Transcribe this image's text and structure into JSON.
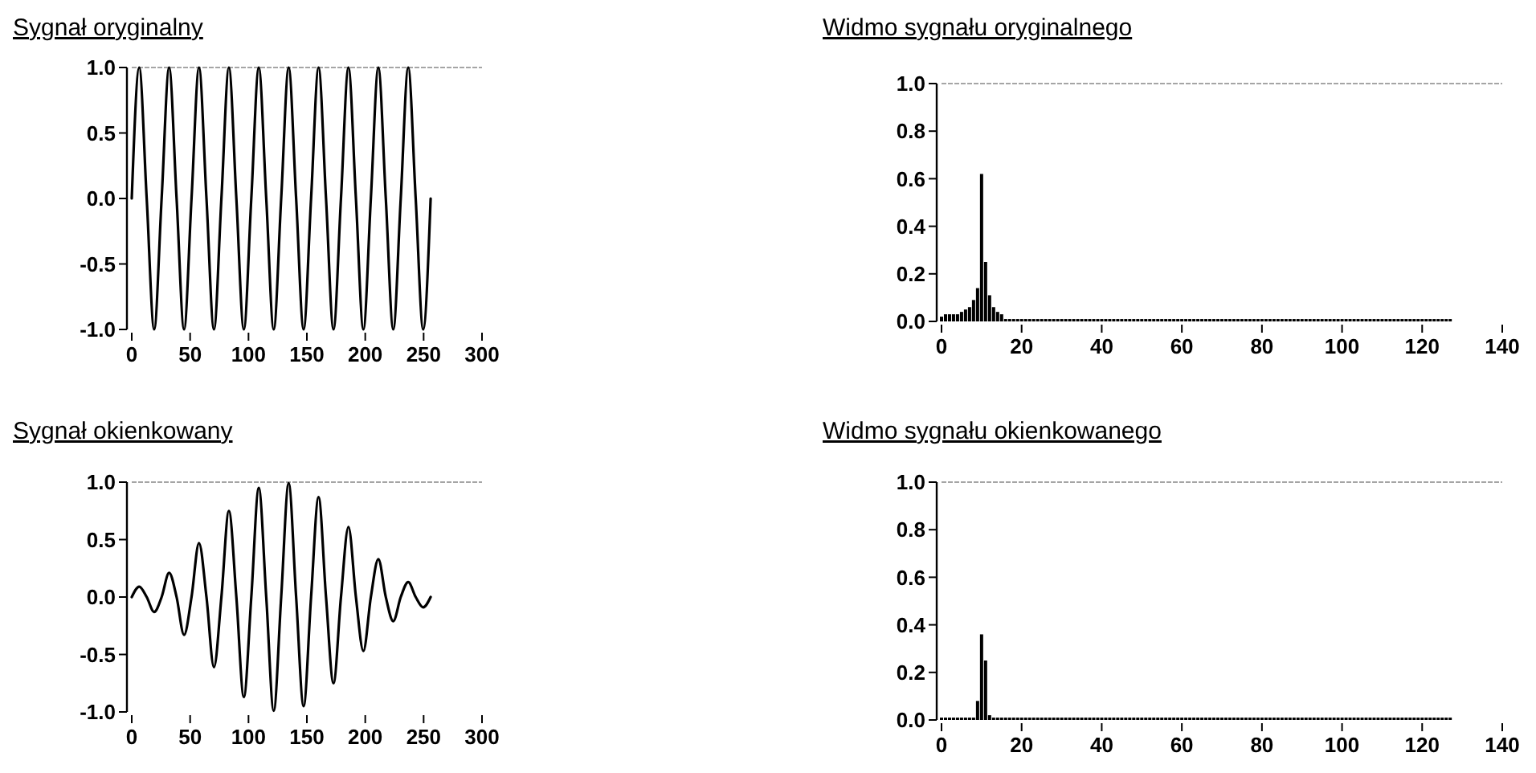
{
  "chart_data": [
    {
      "type": "line",
      "title": "Sygnał oryginalny",
      "x": [
        0,
        6.4,
        12.8,
        19.2,
        25.6,
        32,
        38.4,
        44.8,
        51.2,
        57.6,
        64,
        70.4,
        76.8,
        83.2,
        89.6,
        96,
        102.4,
        108.8,
        115.2,
        121.6,
        128,
        134.4,
        140.8,
        147.2,
        153.6,
        160,
        166.4,
        172.8,
        179.2,
        185.6,
        192,
        198.4,
        204.8,
        211.2,
        217.6,
        224,
        230.4,
        236.8,
        243.2,
        249.6,
        256
      ],
      "series": [
        {
          "color": "#000000",
          "values": [
            0,
            1,
            0,
            -1,
            0,
            1,
            0,
            -1,
            0,
            1,
            0,
            -1,
            0,
            1,
            0,
            -1,
            0,
            1,
            0,
            -1,
            0,
            1,
            0,
            -1,
            0,
            1,
            0,
            -1,
            0,
            1,
            0,
            -1,
            0,
            1,
            0,
            -1,
            0,
            1,
            0,
            -1,
            0
          ]
        }
      ],
      "xlim": [
        0,
        300
      ],
      "xticks": [
        0,
        50,
        100,
        150,
        200,
        250,
        300
      ],
      "ylim": [
        -1,
        1
      ],
      "yticks": [
        {
          "value": -1,
          "label": "-1.0"
        },
        {
          "value": -0.5,
          "label": "-0.5"
        },
        {
          "value": 0,
          "label": "0.0"
        },
        {
          "value": 0.5,
          "label": "0.5"
        },
        {
          "value": 1,
          "label": "1.0"
        }
      ]
    },
    {
      "type": "bar",
      "title": "Widmo sygnału oryginalnego",
      "x": [
        0,
        1,
        2,
        3,
        4,
        5,
        6,
        7,
        8,
        9,
        10,
        11,
        12,
        13,
        14,
        15,
        16,
        17,
        18,
        19,
        20,
        21,
        22,
        23,
        24,
        25,
        26,
        27,
        28,
        29,
        30,
        31,
        32,
        33,
        34,
        35,
        36,
        37,
        38,
        39,
        40,
        41,
        42,
        43,
        44,
        45,
        46,
        47,
        48,
        49,
        50,
        51,
        52,
        53,
        54,
        55,
        56,
        57,
        58,
        59,
        60,
        61,
        62,
        63,
        64,
        65,
        66,
        67,
        68,
        69,
        70,
        71,
        72,
        73,
        74,
        75,
        76,
        77,
        78,
        79,
        80,
        81,
        82,
        83,
        84,
        85,
        86,
        87,
        88,
        89,
        90,
        91,
        92,
        93,
        94,
        95,
        96,
        97,
        98,
        99,
        100,
        101,
        102,
        103,
        104,
        105,
        106,
        107,
        108,
        109,
        110,
        111,
        112,
        113,
        114,
        115,
        116,
        117,
        118,
        119,
        120,
        121,
        122,
        123,
        124,
        125,
        126,
        127
      ],
      "series": [
        {
          "color": "#000000",
          "values": [
            0.02,
            0.03,
            0.03,
            0.03,
            0.03,
            0.04,
            0.05,
            0.06,
            0.09,
            0.14,
            0.62,
            0.25,
            0.11,
            0.06,
            0.04,
            0.03,
            0.01,
            0.01,
            0.01,
            0.01,
            0.01,
            0.01,
            0.01,
            0.01,
            0.01,
            0.01,
            0.01,
            0.01,
            0.01,
            0.01,
            0.01,
            0.01,
            0.01,
            0.01,
            0.01,
            0.01,
            0.01,
            0.01,
            0.01,
            0.01,
            0.01,
            0.01,
            0.01,
            0.01,
            0.01,
            0.01,
            0.01,
            0.01,
            0.01,
            0.01,
            0.01,
            0.01,
            0.01,
            0.01,
            0.01,
            0.01,
            0.01,
            0.01,
            0.01,
            0.01,
            0.01,
            0.01,
            0.01,
            0.01,
            0.01,
            0.01,
            0.01,
            0.01,
            0.01,
            0.01,
            0.01,
            0.01,
            0.01,
            0.01,
            0.01,
            0.01,
            0.01,
            0.01,
            0.01,
            0.01,
            0.01,
            0.01,
            0.01,
            0.01,
            0.01,
            0.01,
            0.01,
            0.01,
            0.01,
            0.01,
            0.01,
            0.01,
            0.01,
            0.01,
            0.01,
            0.01,
            0.01,
            0.01,
            0.01,
            0.01,
            0.01,
            0.01,
            0.01,
            0.01,
            0.01,
            0.01,
            0.01,
            0.01,
            0.01,
            0.01,
            0.01,
            0.01,
            0.01,
            0.01,
            0.01,
            0.01,
            0.01,
            0.01,
            0.01,
            0.01,
            0.01,
            0.01,
            0.01,
            0.01,
            0.01,
            0.01,
            0.01,
            0.01
          ]
        }
      ],
      "xlim": [
        0,
        140
      ],
      "xticks": [
        0,
        20,
        40,
        60,
        80,
        100,
        120,
        140
      ],
      "ylim": [
        0,
        1
      ],
      "yticks": [
        {
          "value": 0,
          "label": "0.0"
        },
        {
          "value": 0.2,
          "label": "0.2"
        },
        {
          "value": 0.4,
          "label": "0.4"
        },
        {
          "value": 0.6,
          "label": "0.6"
        },
        {
          "value": 0.8,
          "label": "0.8"
        },
        {
          "value": 1,
          "label": "1.0"
        }
      ]
    },
    {
      "type": "line",
      "title": "Sygnał okienkowany",
      "x": [
        0,
        6.4,
        12.8,
        19.2,
        25.6,
        32,
        38.4,
        44.8,
        51.2,
        57.6,
        64,
        70.4,
        76.8,
        83.2,
        89.6,
        96,
        102.4,
        108.8,
        115.2,
        121.6,
        128,
        134.4,
        140.8,
        147.2,
        153.6,
        160,
        166.4,
        172.8,
        179.2,
        185.6,
        192,
        198.4,
        204.8,
        211.2,
        217.6,
        224,
        230.4,
        236.8,
        243.2,
        249.6,
        256
      ],
      "series": [
        {
          "color": "#000000",
          "values": [
            0,
            0.09,
            0,
            -0.13,
            0,
            0.21,
            0,
            -0.33,
            0,
            0.47,
            0,
            -0.61,
            0,
            0.75,
            0,
            -0.87,
            0,
            0.95,
            0,
            -0.99,
            0,
            0.99,
            0,
            -0.95,
            0,
            0.87,
            0,
            -0.75,
            0,
            0.61,
            0,
            -0.47,
            0,
            0.33,
            0,
            -0.21,
            0,
            0.13,
            0,
            -0.09,
            0
          ]
        }
      ],
      "xlim": [
        0,
        300
      ],
      "xticks": [
        0,
        50,
        100,
        150,
        200,
        250,
        300
      ],
      "ylim": [
        -1,
        1
      ],
      "yticks": [
        {
          "value": -1,
          "label": "-1.0"
        },
        {
          "value": -0.5,
          "label": "-0.5"
        },
        {
          "value": 0,
          "label": "0.0"
        },
        {
          "value": 0.5,
          "label": "0.5"
        },
        {
          "value": 1,
          "label": "1.0"
        }
      ]
    },
    {
      "type": "bar",
      "title": "Widmo sygnału okienkowanego",
      "x": [
        0,
        1,
        2,
        3,
        4,
        5,
        6,
        7,
        8,
        9,
        10,
        11,
        12,
        13,
        14,
        15,
        16,
        17,
        18,
        19,
        20,
        21,
        22,
        23,
        24,
        25,
        26,
        27,
        28,
        29,
        30,
        31,
        32,
        33,
        34,
        35,
        36,
        37,
        38,
        39,
        40,
        41,
        42,
        43,
        44,
        45,
        46,
        47,
        48,
        49,
        50,
        51,
        52,
        53,
        54,
        55,
        56,
        57,
        58,
        59,
        60,
        61,
        62,
        63,
        64,
        65,
        66,
        67,
        68,
        69,
        70,
        71,
        72,
        73,
        74,
        75,
        76,
        77,
        78,
        79,
        80,
        81,
        82,
        83,
        84,
        85,
        86,
        87,
        88,
        89,
        90,
        91,
        92,
        93,
        94,
        95,
        96,
        97,
        98,
        99,
        100,
        101,
        102,
        103,
        104,
        105,
        106,
        107,
        108,
        109,
        110,
        111,
        112,
        113,
        114,
        115,
        116,
        117,
        118,
        119,
        120,
        121,
        122,
        123,
        124,
        125,
        126,
        127
      ],
      "series": [
        {
          "color": "#000000",
          "values": [
            0.01,
            0.01,
            0.01,
            0.01,
            0.01,
            0.01,
            0.01,
            0.01,
            0.01,
            0.08,
            0.36,
            0.25,
            0.02,
            0.01,
            0.01,
            0.01,
            0.01,
            0.01,
            0.01,
            0.01,
            0.01,
            0.01,
            0.01,
            0.01,
            0.01,
            0.01,
            0.01,
            0.01,
            0.01,
            0.01,
            0.01,
            0.01,
            0.01,
            0.01,
            0.01,
            0.01,
            0.01,
            0.01,
            0.01,
            0.01,
            0.01,
            0.01,
            0.01,
            0.01,
            0.01,
            0.01,
            0.01,
            0.01,
            0.01,
            0.01,
            0.01,
            0.01,
            0.01,
            0.01,
            0.01,
            0.01,
            0.01,
            0.01,
            0.01,
            0.01,
            0.01,
            0.01,
            0.01,
            0.01,
            0.01,
            0.01,
            0.01,
            0.01,
            0.01,
            0.01,
            0.01,
            0.01,
            0.01,
            0.01,
            0.01,
            0.01,
            0.01,
            0.01,
            0.01,
            0.01,
            0.01,
            0.01,
            0.01,
            0.01,
            0.01,
            0.01,
            0.01,
            0.01,
            0.01,
            0.01,
            0.01,
            0.01,
            0.01,
            0.01,
            0.01,
            0.01,
            0.01,
            0.01,
            0.01,
            0.01,
            0.01,
            0.01,
            0.01,
            0.01,
            0.01,
            0.01,
            0.01,
            0.01,
            0.01,
            0.01,
            0.01,
            0.01,
            0.01,
            0.01,
            0.01,
            0.01,
            0.01,
            0.01,
            0.01,
            0.01,
            0.01,
            0.01,
            0.01,
            0.01,
            0.01,
            0.01,
            0.01,
            0.01
          ]
        }
      ],
      "xlim": [
        0,
        140
      ],
      "xticks": [
        0,
        20,
        40,
        60,
        80,
        100,
        120,
        140
      ],
      "ylim": [
        0,
        1
      ],
      "yticks": [
        {
          "value": 0,
          "label": "0.0"
        },
        {
          "value": 0.2,
          "label": "0.2"
        },
        {
          "value": 0.4,
          "label": "0.4"
        },
        {
          "value": 0.6,
          "label": "0.6"
        },
        {
          "value": 0.8,
          "label": "0.8"
        },
        {
          "value": 1,
          "label": "1.0"
        }
      ]
    }
  ]
}
